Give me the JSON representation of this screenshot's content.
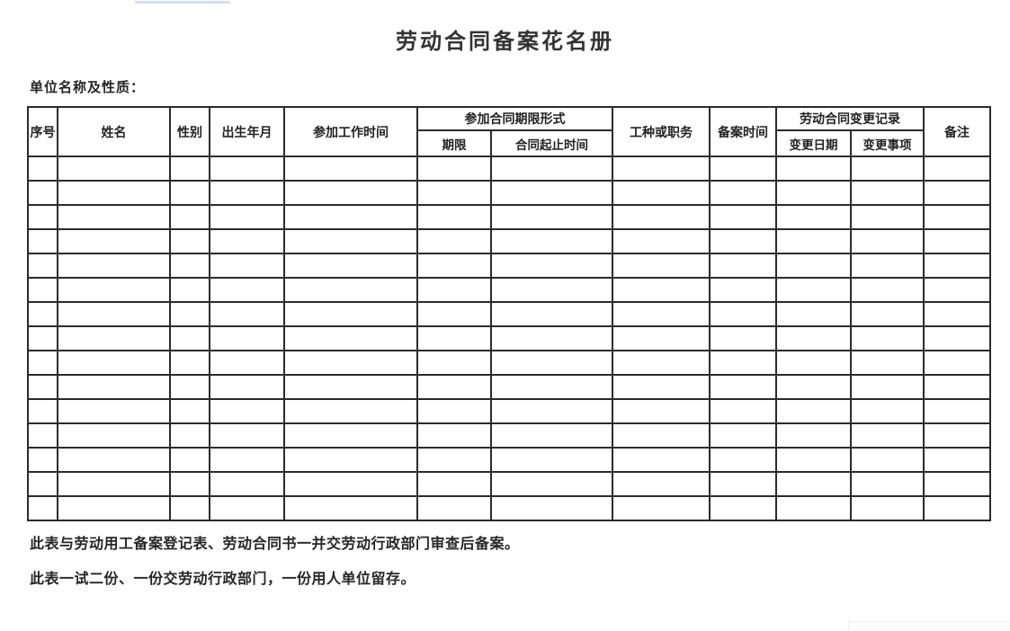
{
  "page": {
    "title": "劳动合同备案花名册",
    "unit_label": "单位名称及性质：",
    "notes": [
      "此表与劳动用工备案登记表、劳动合同书一并交劳动行政部门审查后备案。",
      "此表一试二份、一份交劳动行政部门，一份用人单位留存。"
    ]
  },
  "table": {
    "headers": {
      "seq": "序号",
      "name": "姓名",
      "gender": "性别",
      "birth": "出生年月",
      "work_start": "参加工作时间",
      "contract_term_group": "参加合同期限形式",
      "term": "期限",
      "contract_period": "合同起止时间",
      "job": "工种或职务",
      "filing_time": "备案时间",
      "change_record_group": "劳动合同变更记录",
      "change_date": "变更日期",
      "change_item": "变更事项",
      "remark": "备注"
    },
    "body_rows": 15,
    "body_columns": 12
  },
  "colors": {
    "background": "#ffffff",
    "border": "#2b2b2b",
    "text": "#262626",
    "top_highlight_artifact": "#cfe0f2"
  }
}
